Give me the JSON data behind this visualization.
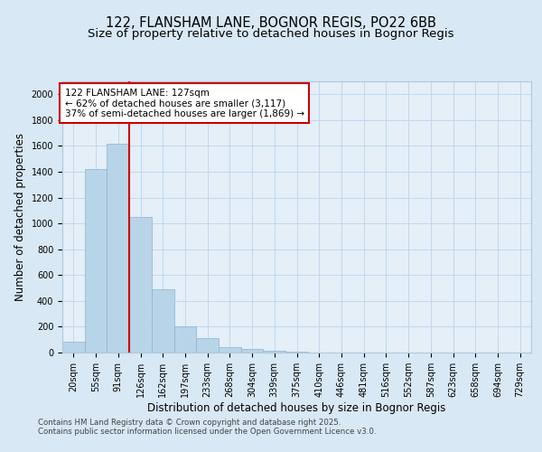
{
  "title1": "122, FLANSHAM LANE, BOGNOR REGIS, PO22 6BB",
  "title2": "Size of property relative to detached houses in Bognor Regis",
  "xlabel": "Distribution of detached houses by size in Bognor Regis",
  "ylabel": "Number of detached properties",
  "categories": [
    "20sqm",
    "55sqm",
    "91sqm",
    "126sqm",
    "162sqm",
    "197sqm",
    "233sqm",
    "268sqm",
    "304sqm",
    "339sqm",
    "375sqm",
    "410sqm",
    "446sqm",
    "481sqm",
    "516sqm",
    "552sqm",
    "587sqm",
    "623sqm",
    "658sqm",
    "694sqm",
    "729sqm"
  ],
  "values": [
    85,
    1420,
    1620,
    1050,
    490,
    205,
    110,
    40,
    30,
    15,
    10,
    0,
    0,
    0,
    0,
    0,
    0,
    0,
    0,
    0,
    0
  ],
  "bar_color": "#b8d4e8",
  "bar_edgecolor": "#8ab4d0",
  "vline_color": "#cc0000",
  "annotation_text": "122 FLANSHAM LANE: 127sqm\n← 62% of detached houses are smaller (3,117)\n37% of semi-detached houses are larger (1,869) →",
  "annotation_box_edgecolor": "#cc0000",
  "annotation_box_facecolor": "#ffffff",
  "ylim": [
    0,
    2100
  ],
  "yticks": [
    0,
    200,
    400,
    600,
    800,
    1000,
    1200,
    1400,
    1600,
    1800,
    2000
  ],
  "grid_color": "#c0d8ec",
  "background_color": "#d8e8f4",
  "plot_bg_color": "#e4eff8",
  "footer1": "Contains HM Land Registry data © Crown copyright and database right 2025.",
  "footer2": "Contains public sector information licensed under the Open Government Licence v3.0.",
  "title_fontsize": 10.5,
  "subtitle_fontsize": 9.5,
  "axis_label_fontsize": 8.5,
  "tick_fontsize": 7,
  "annotation_fontsize": 7.5,
  "footer_fontsize": 6.2
}
